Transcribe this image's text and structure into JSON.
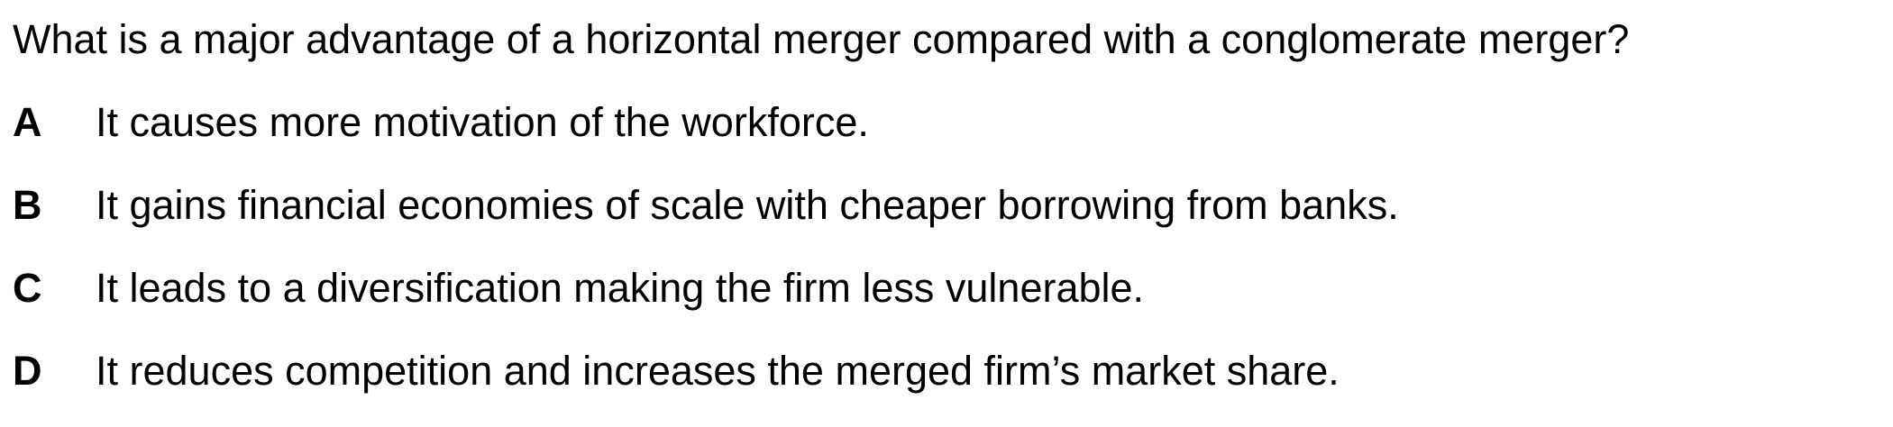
{
  "question": "What is a major advantage of a horizontal merger compared with a conglomerate merger?",
  "options": [
    {
      "letter": "A",
      "text": "It causes more motivation of the workforce."
    },
    {
      "letter": "B",
      "text": "It gains financial economies of scale with cheaper borrowing from banks."
    },
    {
      "letter": "C",
      "text": "It leads to a diversification making the firm less vulnerable."
    },
    {
      "letter": "D",
      "text": "It reduces competition and increases the merged firm’s market share."
    }
  ]
}
